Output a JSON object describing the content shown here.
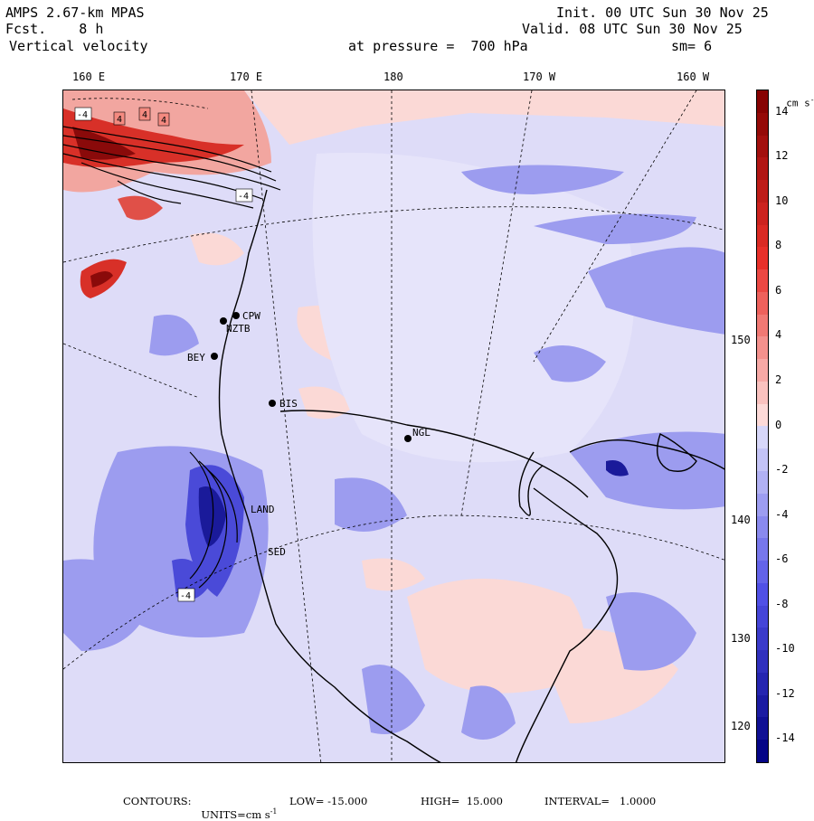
{
  "header": {
    "model": "AMPS 2.67-km MPAS",
    "forecast": "Fcst.    8 h",
    "field": "Vertical velocity",
    "init": "Init. 00 UTC Sun 30 Nov 25",
    "valid": "Valid. 08 UTC Sun 30 Nov 25",
    "level": "at pressure =  700 hPa",
    "smoothing": "sm= 6"
  },
  "longitude_labels": [
    "160 E",
    "170 E",
    "180",
    "170 W",
    "160 W"
  ],
  "latitude_labels": [
    "150 W",
    "140 W",
    "130 W",
    "120 W"
  ],
  "stations": [
    "CPW",
    "NZTB",
    "BEY",
    "BIS",
    "NGL",
    "LAND",
    "SED"
  ],
  "contour_box_labels": [
    "4",
    "4",
    "4",
    "-4",
    "-4",
    "-4"
  ],
  "colorbar": {
    "units": "cm s",
    "units_exponent": "-1",
    "tick_labels": [
      "14",
      "12",
      "10",
      "8",
      "6",
      "4",
      "2",
      "0",
      "-2",
      "-4",
      "-6",
      "-8",
      "-10",
      "-12",
      "-14"
    ],
    "levels_top_to_bottom": [
      15,
      14,
      13,
      12,
      11,
      10,
      9,
      8,
      7,
      6,
      5,
      4,
      3,
      2,
      1,
      0,
      -1,
      -2,
      -3,
      -4,
      -5,
      -6,
      -7,
      -8,
      -9,
      -10,
      -11,
      -12,
      -13,
      -14,
      -15
    ],
    "colors": {
      "strong_positive": "#800000",
      "positive": "#e8302a",
      "weak_positive": "#fbd0cc",
      "neutral": "#ffffff",
      "weak_negative": "#dcdcfa",
      "negative": "#5a5ae6",
      "strong_negative": "#000080"
    }
  },
  "footer": {
    "contours": "CONTOURS:",
    "units": "UNITS=cm s",
    "units_exponent": "-1",
    "low": "LOW= -15.000",
    "high": "HIGH=  15.000",
    "interval": "INTERVAL=   1.0000"
  }
}
